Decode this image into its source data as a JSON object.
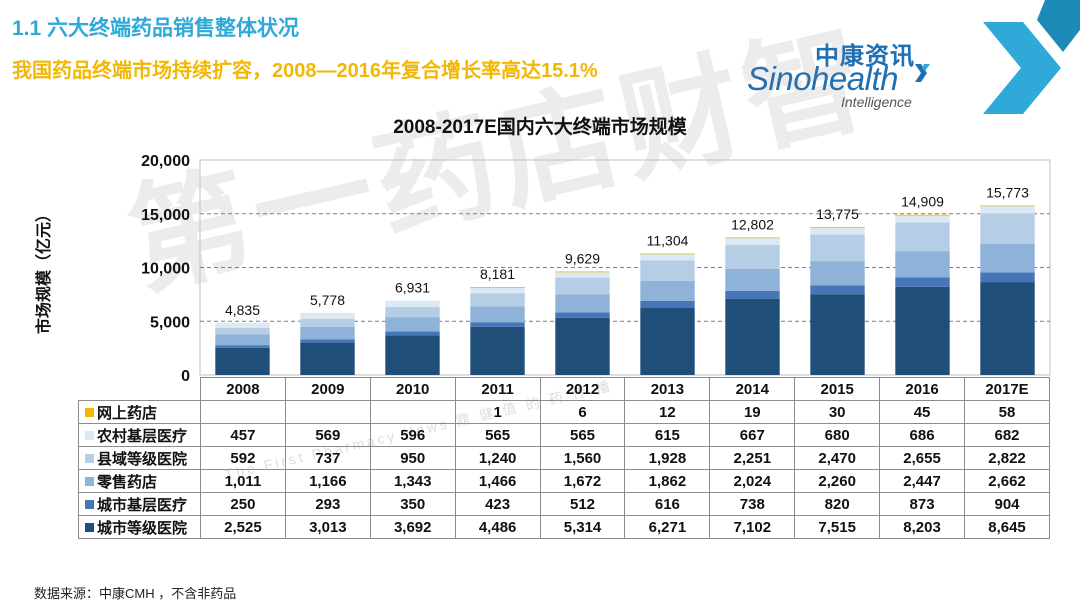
{
  "slide": {
    "title": "1.1 六大终端药品销售整体状况",
    "subtitle": "我国药品终端市场持续扩容，2008—2016年复合增长率高达15.1%",
    "source_note": "数据来源：中康CMH ，不含非药品"
  },
  "logo": {
    "cn": "中康资讯",
    "en": "Sinohealth",
    "tagline": "Intelligence"
  },
  "watermark": {
    "text": "第一药店财智",
    "sub": "The First Pharmacy News 鼎 健 值 的 药 传 播"
  },
  "colors": {
    "online": "#f5b800",
    "rural": "#dce9f5",
    "county": "#b6cde6",
    "retail": "#8fb2d8",
    "city_basic": "#4576b8",
    "city_hosp": "#1f4e79",
    "title_blue": "#2ea9d8",
    "subtitle_yellow": "#f2b705"
  },
  "chart_data": {
    "type": "bar",
    "stacked": true,
    "title": "2008-2017E国内六大终端市场规模",
    "ylabel": "市场规模（亿元）",
    "ylim": [
      0,
      20000
    ],
    "yticks": [
      0,
      5000,
      10000,
      15000,
      20000
    ],
    "ytick_labels": [
      "0",
      "5,000",
      "10,000",
      "15,000",
      "20,000"
    ],
    "grid": true,
    "categories": [
      "2008",
      "2009",
      "2010",
      "2011",
      "2012",
      "2013",
      "2014",
      "2015",
      "2016",
      "2017E"
    ],
    "totals": [
      4835,
      5778,
      6931,
      8181,
      9629,
      11304,
      12802,
      13775,
      14909,
      15773
    ],
    "total_labels": [
      "4,835",
      "5,778",
      "6,931",
      "8,181",
      "9,629",
      "11,304",
      "12,802",
      "13,775",
      "14,909",
      "15,773"
    ],
    "series": [
      {
        "name": "城市等级医院",
        "color_key": "city_hosp",
        "values": [
          2525,
          3013,
          3692,
          4486,
          5314,
          6271,
          7102,
          7515,
          8203,
          8645
        ],
        "labels": [
          "2,525",
          "3,013",
          "3,692",
          "4,486",
          "5,314",
          "6,271",
          "7,102",
          "7,515",
          "8,203",
          "8,645"
        ]
      },
      {
        "name": "城市基层医疗",
        "color_key": "city_basic",
        "values": [
          250,
          293,
          350,
          423,
          512,
          616,
          738,
          820,
          873,
          904
        ],
        "labels": [
          "250",
          "293",
          "350",
          "423",
          "512",
          "616",
          "738",
          "820",
          "873",
          "904"
        ]
      },
      {
        "name": "零售药店",
        "color_key": "retail",
        "values": [
          1011,
          1166,
          1343,
          1466,
          1672,
          1862,
          2024,
          2260,
          2447,
          2662
        ],
        "labels": [
          "1,011",
          "1,166",
          "1,343",
          "1,466",
          "1,672",
          "1,862",
          "2,024",
          "2,260",
          "2,447",
          "2,662"
        ]
      },
      {
        "name": "县域等级医院",
        "color_key": "county",
        "values": [
          592,
          737,
          950,
          1240,
          1560,
          1928,
          2251,
          2470,
          2655,
          2822
        ],
        "labels": [
          "592",
          "737",
          "950",
          "1,240",
          "1,560",
          "1,928",
          "2,251",
          "2,470",
          "2,655",
          "2,822"
        ]
      },
      {
        "name": "农村基层医疗",
        "color_key": "rural",
        "values": [
          457,
          569,
          596,
          565,
          565,
          615,
          667,
          680,
          686,
          682
        ],
        "labels": [
          "457",
          "569",
          "596",
          "565",
          "565",
          "615",
          "667",
          "680",
          "686",
          "682"
        ]
      },
      {
        "name": "网上药店",
        "color_key": "online",
        "values": [
          0,
          0,
          0,
          1,
          6,
          12,
          19,
          30,
          45,
          58
        ],
        "labels": [
          "",
          "",
          "",
          "1",
          "6",
          "12",
          "19",
          "30",
          "45",
          "58"
        ]
      }
    ],
    "table_row_order": [
      "网上药店",
      "农村基层医疗",
      "县域等级医院",
      "零售药店",
      "城市基层医疗",
      "城市等级医院"
    ]
  }
}
